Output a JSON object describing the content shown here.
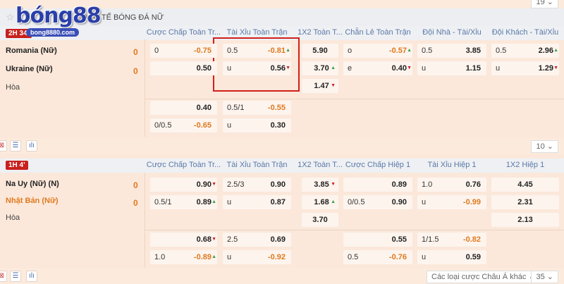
{
  "logo": {
    "brand": "bóng88",
    "url": "bong8880.com"
  },
  "league": {
    "title": "QUỐC TẾ BÓNG ĐÁ NỮ",
    "page_select": "19"
  },
  "colors": {
    "accent_orange": "#e07a1f",
    "up_green": "#3aa04a",
    "down_red": "#d02020",
    "badge_red": "#c8201d",
    "header_blue": "#5b79a8",
    "highlight_box": "#d0201d"
  },
  "match1": {
    "time": "2H 34'",
    "home": "Romania (Nữ)",
    "away": "Ukraine (Nữ)",
    "draw": "Hòa",
    "home_score": "0",
    "away_score": "0",
    "columns": [
      "Cược Chấp Toàn Tr...",
      "Tài Xỉu Toàn Trận",
      "1X2 Toàn T...",
      "Chẵn Lẻ Toàn Trận",
      "Đội Nhà - Tài/Xỉu",
      "Đội Khách - Tài/Xỉu"
    ],
    "cells": [
      {
        "col": 0,
        "row": 0,
        "l": "0",
        "r": "-0.75",
        "neg": true
      },
      {
        "col": 0,
        "row": 1,
        "l": "",
        "r": "0.50"
      },
      {
        "col": 1,
        "row": 0,
        "l": "0.5",
        "r": "-0.81",
        "neg": true,
        "arrow": "up"
      },
      {
        "col": 1,
        "row": 1,
        "l": "u",
        "r": "0.56",
        "arrow": "down"
      },
      {
        "col": 2,
        "row": 0,
        "c": "5.90"
      },
      {
        "col": 2,
        "row": 1,
        "c": "3.70",
        "arrow": "up"
      },
      {
        "col": 2,
        "row": 2,
        "c": "1.47",
        "arrow": "down"
      },
      {
        "col": 3,
        "row": 0,
        "l": "o",
        "r": "-0.57",
        "neg": true,
        "arrow": "up"
      },
      {
        "col": 3,
        "row": 1,
        "l": "e",
        "r": "0.40",
        "arrow": "down"
      },
      {
        "col": 4,
        "row": 0,
        "l": "0.5",
        "r": "3.85"
      },
      {
        "col": 4,
        "row": 1,
        "l": "u",
        "r": "1.15"
      },
      {
        "col": 5,
        "row": 0,
        "l": "0.5",
        "r": "2.96",
        "arrow": "up"
      },
      {
        "col": 5,
        "row": 1,
        "l": "u",
        "r": "1.29",
        "arrow": "down"
      },
      {
        "col": 0,
        "row": 3,
        "l": "",
        "r": "0.40"
      },
      {
        "col": 0,
        "row": 4,
        "l": "0/0.5",
        "r": "-0.65",
        "neg": true
      },
      {
        "col": 1,
        "row": 3,
        "l": "0.5/1",
        "r": "-0.55",
        "neg": true
      },
      {
        "col": 1,
        "row": 4,
        "l": "u",
        "r": "0.30"
      }
    ]
  },
  "toolbar_mid": {
    "page_select": "10"
  },
  "match2": {
    "time": "1H 4'",
    "home": "Na Uy (Nữ) (N)",
    "away": "Nhật Bản (Nữ)",
    "draw": "Hòa",
    "home_score": "0",
    "away_score": "0",
    "columns": [
      "Cược Chấp Toàn Tr...",
      "Tài Xỉu Toàn Trận",
      "1X2 Toàn T...",
      "Cược Chấp Hiệp 1",
      "Tài Xỉu Hiệp 1",
      "1X2 Hiệp 1"
    ],
    "cells": [
      {
        "col": 0,
        "row": 0,
        "l": "",
        "r": "0.90",
        "arrow": "down"
      },
      {
        "col": 0,
        "row": 1,
        "l": "0.5/1",
        "r": "0.89",
        "arrow": "up"
      },
      {
        "col": 1,
        "row": 0,
        "l": "2.5/3",
        "r": "0.90"
      },
      {
        "col": 1,
        "row": 1,
        "l": "u",
        "r": "0.87"
      },
      {
        "col": 2,
        "row": 0,
        "c": "3.85",
        "arrow": "down"
      },
      {
        "col": 2,
        "row": 1,
        "c": "1.68",
        "arrow": "up"
      },
      {
        "col": 2,
        "row": 2,
        "c": "3.70"
      },
      {
        "col": 3,
        "row": 0,
        "l": "",
        "r": "0.89"
      },
      {
        "col": 3,
        "row": 1,
        "l": "0/0.5",
        "r": "0.90"
      },
      {
        "col": 4,
        "row": 0,
        "l": "1.0",
        "r": "0.76"
      },
      {
        "col": 4,
        "row": 1,
        "l": "u",
        "r": "-0.99",
        "neg": true
      },
      {
        "col": 5,
        "row": 0,
        "c": "4.45"
      },
      {
        "col": 5,
        "row": 1,
        "c": "2.31"
      },
      {
        "col": 5,
        "row": 2,
        "c": "2.13"
      },
      {
        "col": 0,
        "row": 3,
        "l": "",
        "r": "0.68",
        "arrow": "down"
      },
      {
        "col": 0,
        "row": 4,
        "l": "1.0",
        "r": "-0.89",
        "neg": true,
        "arrow": "up"
      },
      {
        "col": 1,
        "row": 3,
        "l": "2.5",
        "r": "0.69"
      },
      {
        "col": 1,
        "row": 4,
        "l": "u",
        "r": "-0.92",
        "neg": true
      },
      {
        "col": 3,
        "row": 3,
        "l": "",
        "r": "0.55"
      },
      {
        "col": 3,
        "row": 4,
        "l": "0.5",
        "r": "-0.76",
        "neg": true
      },
      {
        "col": 4,
        "row": 3,
        "l": "1/1.5",
        "r": "-0.82",
        "neg": true
      },
      {
        "col": 4,
        "row": 4,
        "l": "u",
        "r": "0.59"
      }
    ]
  },
  "toolbar_bottom": {
    "bet_type_select": "Các loại cược Châu Á khác",
    "page_select": "35"
  }
}
